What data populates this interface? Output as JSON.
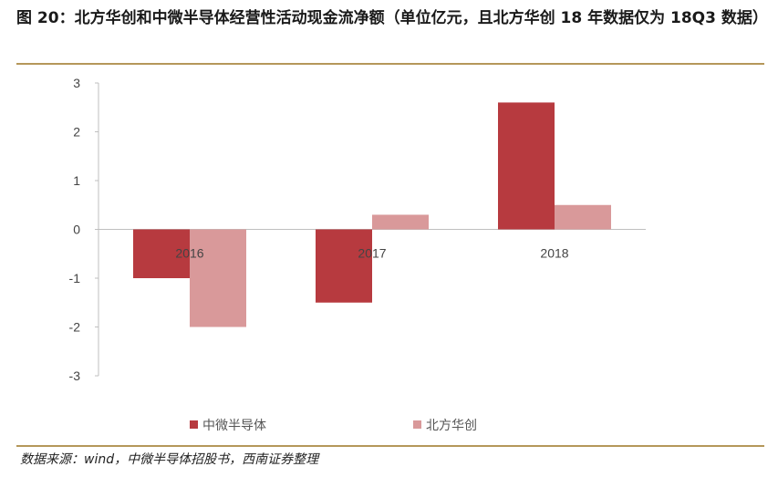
{
  "title": "图 20：北方华创和中微半导体经营性活动现金流净额（单位亿元，且北方华创 18 年数据仅为 18Q3 数据）",
  "source": "数据来源：wind，中微半导体招股书，西南证券整理",
  "colors": {
    "series0": "#b73a3f",
    "series1": "#d9999a",
    "rule": "#b5975a",
    "axis": "#bfbfbf"
  },
  "chart_data": {
    "type": "bar",
    "title": "",
    "xlabel": "",
    "ylabel": "",
    "categories": [
      "2016",
      "2017",
      "2018"
    ],
    "series": [
      {
        "name": "中微半导体",
        "values": [
          -1.0,
          -1.5,
          2.6
        ]
      },
      {
        "name": "北方华创",
        "values": [
          -2.0,
          0.3,
          0.5
        ]
      }
    ],
    "ylim": [
      -3,
      3
    ],
    "yticks": [
      "3",
      "2",
      "1",
      "0",
      "-1",
      "-2",
      "-3"
    ],
    "grid": false,
    "legend": "bottom"
  }
}
